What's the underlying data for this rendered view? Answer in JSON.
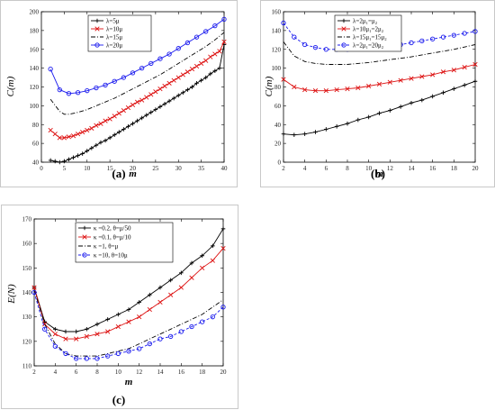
{
  "chart_data": [
    {
      "type": "line",
      "panel_label": "(a)",
      "xlabel": "m",
      "ylabel": "C(m)",
      "xlim": [
        0,
        40
      ],
      "ylim": [
        40,
        200
      ],
      "xticks": [
        0,
        5,
        10,
        15,
        20,
        25,
        30,
        35,
        40
      ],
      "yticks": [
        40,
        60,
        80,
        100,
        120,
        140,
        160,
        180,
        200
      ],
      "grid": false,
      "legend": "top-left",
      "series": [
        {
          "name": "λ=5μ",
          "marker": "plus",
          "color": "#000000",
          "dash": "solid",
          "x": [
            2,
            3,
            4,
            5,
            6,
            7,
            8,
            9,
            10,
            11,
            12,
            13,
            14,
            15,
            16,
            17,
            18,
            19,
            20,
            21,
            22,
            23,
            24,
            25,
            26,
            27,
            28,
            29,
            30,
            31,
            32,
            33,
            34,
            35,
            36,
            37,
            38,
            39,
            40
          ],
          "y": [
            42,
            41,
            40,
            41,
            43,
            45,
            47,
            49,
            52,
            55,
            58,
            61,
            63,
            66,
            69,
            72,
            75,
            78,
            81,
            84,
            87,
            90,
            93,
            96,
            99,
            102,
            105,
            108,
            111,
            114,
            117,
            120,
            124,
            127,
            130,
            134,
            137,
            140,
            165
          ]
        },
        {
          "name": "λ=10μ",
          "marker": "x",
          "color": "#dd1111",
          "dash": "solid",
          "x": [
            2,
            3,
            4,
            5,
            6,
            7,
            8,
            9,
            10,
            11,
            12,
            13,
            14,
            15,
            16,
            17,
            18,
            19,
            20,
            21,
            22,
            23,
            24,
            25,
            26,
            27,
            28,
            29,
            30,
            31,
            32,
            33,
            34,
            35,
            36,
            37,
            38,
            39,
            40
          ],
          "y": [
            74,
            70,
            66,
            66,
            67,
            68,
            70,
            72,
            74,
            76,
            79,
            81,
            84,
            86,
            89,
            92,
            95,
            98,
            101,
            104,
            106,
            109,
            112,
            115,
            118,
            121,
            124,
            127,
            130,
            133,
            136,
            139,
            142,
            145,
            148,
            152,
            155,
            158,
            168
          ]
        },
        {
          "name": "λ=15μ",
          "marker": "none",
          "color": "#000000",
          "dash": "dashdot",
          "x": [
            2,
            4,
            5,
            6,
            8,
            10,
            12,
            14,
            16,
            18,
            20,
            22,
            24,
            26,
            28,
            30,
            32,
            34,
            36,
            38,
            40
          ],
          "y": [
            107,
            94,
            91,
            91,
            93,
            96,
            100,
            104,
            108,
            113,
            118,
            123,
            128,
            133,
            139,
            145,
            151,
            157,
            163,
            170,
            178
          ]
        },
        {
          "name": "λ=20μ",
          "marker": "circle",
          "color": "#1a1aee",
          "dash": "solid",
          "x": [
            2,
            4,
            6,
            8,
            10,
            12,
            14,
            16,
            18,
            20,
            22,
            24,
            26,
            28,
            30,
            32,
            34,
            36,
            38,
            40
          ],
          "y": [
            139,
            117,
            113,
            114,
            116,
            119,
            122,
            126,
            130,
            135,
            140,
            145,
            150,
            155,
            161,
            167,
            173,
            179,
            185,
            192
          ]
        }
      ]
    },
    {
      "type": "line",
      "panel_label": "(b)",
      "xlabel": "m",
      "ylabel": "C(m)",
      "xlim": [
        2,
        20
      ],
      "ylim": [
        0,
        160
      ],
      "xticks": [
        2,
        4,
        6,
        8,
        10,
        12,
        14,
        16,
        18,
        20
      ],
      "yticks": [
        0,
        20,
        40,
        60,
        80,
        100,
        120,
        140,
        160
      ],
      "grid": false,
      "legend": "top-left",
      "series": [
        {
          "name": "λ=2μ₁=μ₂",
          "marker": "plus",
          "color": "#000000",
          "dash": "solid",
          "x": [
            2,
            3,
            4,
            5,
            6,
            7,
            8,
            9,
            10,
            11,
            12,
            13,
            14,
            15,
            16,
            17,
            18,
            19,
            20
          ],
          "y": [
            30,
            29,
            30,
            32,
            35,
            38,
            41,
            45,
            48,
            52,
            55,
            59,
            63,
            66,
            70,
            74,
            78,
            82,
            86
          ]
        },
        {
          "name": "λ=10μ₁=2μ₂",
          "marker": "x",
          "color": "#dd1111",
          "dash": "solid",
          "x": [
            2,
            3,
            4,
            5,
            6,
            7,
            8,
            9,
            10,
            11,
            12,
            13,
            14,
            15,
            16,
            17,
            18,
            19,
            20
          ],
          "y": [
            88,
            80,
            77,
            76,
            76,
            77,
            78,
            79,
            81,
            83,
            85,
            87,
            89,
            91,
            93,
            96,
            98,
            101,
            104
          ]
        },
        {
          "name": "λ=15μ₁=15μ₂",
          "marker": "none",
          "color": "#000000",
          "dash": "dashdot",
          "x": [
            2,
            3,
            4,
            5,
            6,
            7,
            8,
            10,
            12,
            14,
            16,
            18,
            20
          ],
          "y": [
            128,
            113,
            107,
            105,
            104,
            104,
            104,
            106,
            109,
            112,
            116,
            120,
            125
          ]
        },
        {
          "name": "λ=2μ₁=20μ₂",
          "marker": "circle",
          "color": "#1a1aee",
          "dash": "dashed",
          "x": [
            2,
            3,
            4,
            5,
            6,
            7,
            8,
            9,
            10,
            11,
            12,
            13,
            14,
            15,
            16,
            17,
            18,
            19,
            20
          ],
          "y": [
            148,
            133,
            125,
            122,
            120,
            120,
            120,
            121,
            122,
            123,
            124,
            125,
            127,
            129,
            131,
            133,
            135,
            137,
            139
          ]
        }
      ]
    },
    {
      "type": "line",
      "panel_label": "(c)",
      "xlabel": "m",
      "ylabel": "E(N)",
      "xlim": [
        2,
        20
      ],
      "ylim": [
        110,
        170
      ],
      "xticks": [
        2,
        4,
        6,
        8,
        10,
        12,
        14,
        16,
        18,
        20
      ],
      "yticks": [
        110,
        120,
        130,
        140,
        150,
        160,
        170
      ],
      "grid": false,
      "legend": "top-right",
      "series": [
        {
          "name": "κ =0.2, θ=μ/50",
          "marker": "plus",
          "color": "#000000",
          "dash": "solid",
          "x": [
            2,
            3,
            4,
            5,
            6,
            7,
            8,
            9,
            10,
            11,
            12,
            13,
            14,
            15,
            16,
            17,
            18,
            19,
            20
          ],
          "y": [
            142,
            128,
            125,
            124,
            124,
            125,
            127,
            129,
            131,
            133,
            136,
            139,
            142,
            145,
            148,
            152,
            155,
            159,
            166
          ]
        },
        {
          "name": "κ =0.1, θ=μ/10",
          "marker": "x",
          "color": "#dd1111",
          "dash": "solid",
          "x": [
            2,
            3,
            4,
            5,
            6,
            7,
            8,
            9,
            10,
            11,
            12,
            13,
            14,
            15,
            16,
            17,
            18,
            19,
            20
          ],
          "y": [
            142,
            127,
            123,
            121,
            121,
            122,
            123,
            124,
            126,
            128,
            130,
            133,
            136,
            139,
            142,
            146,
            150,
            153,
            158
          ]
        },
        {
          "name": "κ =1, θ=μ",
          "marker": "none",
          "color": "#000000",
          "dash": "dashdot",
          "x": [
            2,
            3,
            4,
            5,
            6,
            7,
            8,
            9,
            10,
            11,
            12,
            13,
            14,
            15,
            16,
            17,
            18,
            19,
            20
          ],
          "y": [
            141,
            127,
            119,
            115,
            114,
            114,
            114,
            115,
            116,
            117,
            119,
            121,
            123,
            125,
            127,
            129,
            131,
            134,
            137
          ]
        },
        {
          "name": "κ =10, θ=10μ",
          "marker": "circle",
          "color": "#1a1aee",
          "dash": "dashed",
          "x": [
            2,
            3,
            4,
            5,
            6,
            7,
            8,
            9,
            10,
            11,
            12,
            13,
            14,
            15,
            16,
            17,
            18,
            19,
            20
          ],
          "y": [
            140,
            125,
            118,
            115,
            113,
            113,
            113,
            114,
            115,
            116,
            117,
            119,
            121,
            122,
            124,
            126,
            128,
            130,
            134
          ]
        }
      ]
    }
  ]
}
